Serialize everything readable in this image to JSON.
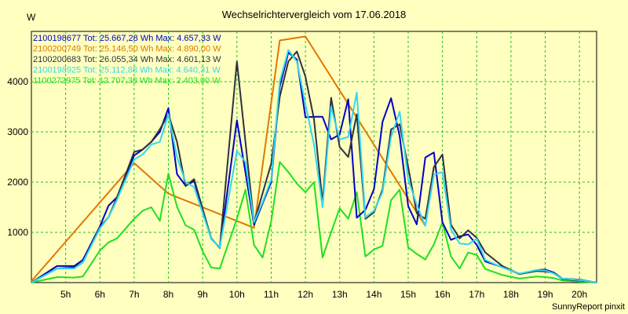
{
  "chart_data": {
    "type": "line",
    "title": "Wechselrichtervergleich vom 17.06.2018",
    "ylabel": "W",
    "footer": "SunnyReport pinxit",
    "grid": true,
    "xlim": [
      4.0,
      20.5
    ],
    "ylim": [
      0,
      5000
    ],
    "x_ticks": [
      {
        "v": 5,
        "label": "5h"
      },
      {
        "v": 6,
        "label": "6h"
      },
      {
        "v": 7,
        "label": "7h"
      },
      {
        "v": 8,
        "label": "8h"
      },
      {
        "v": 9,
        "label": "9h"
      },
      {
        "v": 10,
        "label": "10h"
      },
      {
        "v": 11,
        "label": "11h"
      },
      {
        "v": 12,
        "label": "12h"
      },
      {
        "v": 13,
        "label": "13h"
      },
      {
        "v": 14,
        "label": "14h"
      },
      {
        "v": 15,
        "label": "15h"
      },
      {
        "v": 16,
        "label": "16h"
      },
      {
        "v": 17,
        "label": "17h"
      },
      {
        "v": 18,
        "label": "18h"
      },
      {
        "v": 19,
        "label": "19h"
      },
      {
        "v": 20,
        "label": "20h"
      }
    ],
    "y_ticks": [
      {
        "v": 1000,
        "label": "1000"
      },
      {
        "v": 2000,
        "label": "2000"
      },
      {
        "v": 3000,
        "label": "3000"
      },
      {
        "v": 4000,
        "label": "4000"
      }
    ],
    "series": [
      {
        "name": "2100198677 Tot: 25.667,28 Wh Max: 4.657,33 W",
        "color": "#0000c8",
        "points": [
          [
            4,
            0
          ],
          [
            4.75,
            330
          ],
          [
            5.25,
            330
          ],
          [
            5.5,
            450
          ],
          [
            6,
            1120
          ],
          [
            6.25,
            1530
          ],
          [
            6.5,
            1700
          ],
          [
            7,
            2530
          ],
          [
            7.25,
            2650
          ],
          [
            7.5,
            2800
          ],
          [
            7.75,
            3000
          ],
          [
            8,
            3470
          ],
          [
            8.25,
            2160
          ],
          [
            8.5,
            1930
          ],
          [
            8.75,
            2020
          ],
          [
            9.25,
            880
          ],
          [
            9.5,
            690
          ],
          [
            10,
            3230
          ],
          [
            10.5,
            1150
          ],
          [
            11,
            2000
          ],
          [
            11.25,
            3900
          ],
          [
            11.5,
            4580
          ],
          [
            11.75,
            4440
          ],
          [
            12,
            3290
          ],
          [
            12.25,
            3300
          ],
          [
            12.5,
            3300
          ],
          [
            12.75,
            2850
          ],
          [
            13,
            2950
          ],
          [
            13.25,
            3650
          ],
          [
            13.5,
            1290
          ],
          [
            13.75,
            1450
          ],
          [
            14,
            1860
          ],
          [
            14.25,
            3200
          ],
          [
            14.5,
            3670
          ],
          [
            14.75,
            2920
          ],
          [
            15,
            1520
          ],
          [
            15.25,
            1160
          ],
          [
            15.5,
            2490
          ],
          [
            15.75,
            2590
          ],
          [
            16,
            1200
          ],
          [
            16.25,
            850
          ],
          [
            16.5,
            920
          ],
          [
            16.75,
            960
          ],
          [
            17,
            750
          ],
          [
            17.25,
            420
          ],
          [
            17.75,
            310
          ],
          [
            18.25,
            170
          ],
          [
            18.75,
            250
          ],
          [
            19,
            260
          ],
          [
            19.25,
            200
          ],
          [
            19.5,
            80
          ],
          [
            20,
            60
          ],
          [
            20.5,
            0
          ]
        ]
      },
      {
        "name": "2100200749 Tot: 25.146,50 Wh Max: 4.890,00 W",
        "color": "#e07800",
        "points": [
          [
            4,
            30
          ],
          [
            7,
            2380
          ],
          [
            8,
            1770
          ],
          [
            10.5,
            1090
          ],
          [
            11.25,
            4820
          ],
          [
            12,
            4900
          ],
          [
            15.5,
            1130
          ]
        ]
      },
      {
        "name": "2100200683 Tot: 26.055,34 Wh Max: 4.601,13 W",
        "color": "#303040",
        "points": [
          [
            4,
            0
          ],
          [
            4.75,
            280
          ],
          [
            5.25,
            300
          ],
          [
            5.5,
            400
          ],
          [
            6,
            1110
          ],
          [
            6.25,
            1300
          ],
          [
            6.5,
            1700
          ],
          [
            7,
            2600
          ],
          [
            7.25,
            2650
          ],
          [
            7.5,
            2800
          ],
          [
            7.75,
            3050
          ],
          [
            8,
            3350
          ],
          [
            8.25,
            2800
          ],
          [
            8.5,
            1920
          ],
          [
            8.75,
            2060
          ],
          [
            9.25,
            870
          ],
          [
            9.5,
            700
          ],
          [
            10,
            4400
          ],
          [
            10.5,
            1190
          ],
          [
            11,
            2370
          ],
          [
            11.25,
            3700
          ],
          [
            11.5,
            4400
          ],
          [
            11.75,
            4600
          ],
          [
            12,
            4100
          ],
          [
            12.25,
            3250
          ],
          [
            12.5,
            1600
          ],
          [
            12.75,
            3680
          ],
          [
            13,
            2700
          ],
          [
            13.25,
            2500
          ],
          [
            13.5,
            3350
          ],
          [
            13.75,
            1270
          ],
          [
            14,
            1400
          ],
          [
            14.25,
            1850
          ],
          [
            14.5,
            3050
          ],
          [
            14.75,
            3150
          ],
          [
            15,
            2300
          ],
          [
            15.25,
            1380
          ],
          [
            15.5,
            1270
          ],
          [
            15.75,
            2300
          ],
          [
            16,
            2550
          ],
          [
            16.25,
            1150
          ],
          [
            16.5,
            880
          ],
          [
            16.75,
            1040
          ],
          [
            17,
            890
          ],
          [
            17.25,
            600
          ],
          [
            17.75,
            330
          ],
          [
            18.25,
            170
          ],
          [
            18.75,
            230
          ],
          [
            19,
            220
          ],
          [
            19.25,
            190
          ],
          [
            19.5,
            70
          ],
          [
            20,
            40
          ],
          [
            20.5,
            0
          ]
        ]
      },
      {
        "name": "2100198925 Tot: 25.112,88 Wh Max: 4.640,31 W",
        "color": "#30d8f0",
        "points": [
          [
            4,
            0
          ],
          [
            4.75,
            280
          ],
          [
            5.25,
            280
          ],
          [
            5.5,
            400
          ],
          [
            6,
            1080
          ],
          [
            6.25,
            1300
          ],
          [
            6.5,
            1650
          ],
          [
            7,
            2450
          ],
          [
            7.25,
            2550
          ],
          [
            7.5,
            2750
          ],
          [
            7.75,
            2800
          ],
          [
            8,
            3350
          ],
          [
            8.25,
            2500
          ],
          [
            8.5,
            2000
          ],
          [
            8.75,
            1900
          ],
          [
            9.25,
            870
          ],
          [
            9.5,
            700
          ],
          [
            10,
            2620
          ],
          [
            10.25,
            2400
          ],
          [
            10.5,
            1200
          ],
          [
            10.75,
            1600
          ],
          [
            11,
            2050
          ],
          [
            11.25,
            4000
          ],
          [
            11.5,
            4630
          ],
          [
            11.75,
            4400
          ],
          [
            12,
            3550
          ],
          [
            12.25,
            2750
          ],
          [
            12.5,
            1500
          ],
          [
            12.75,
            3500
          ],
          [
            13,
            2850
          ],
          [
            13.25,
            2900
          ],
          [
            13.5,
            3780
          ],
          [
            13.75,
            1300
          ],
          [
            14,
            1430
          ],
          [
            14.25,
            1800
          ],
          [
            14.5,
            2900
          ],
          [
            14.75,
            3400
          ],
          [
            15,
            2050
          ],
          [
            15.25,
            1550
          ],
          [
            15.5,
            1130
          ],
          [
            15.75,
            2150
          ],
          [
            16,
            2200
          ],
          [
            16.25,
            1060
          ],
          [
            16.5,
            780
          ],
          [
            16.75,
            760
          ],
          [
            17,
            870
          ],
          [
            17.25,
            450
          ],
          [
            17.75,
            300
          ],
          [
            18.25,
            180
          ],
          [
            18.75,
            250
          ],
          [
            19,
            240
          ],
          [
            19.25,
            180
          ],
          [
            19.5,
            80
          ],
          [
            20,
            50
          ],
          [
            20.5,
            0
          ]
        ]
      },
      {
        "name": "1100272975 Tot: 12.707,38 Wh Max: 2.403,00 W",
        "color": "#20e020",
        "points": [
          [
            4,
            0
          ],
          [
            4.75,
            110
          ],
          [
            5.25,
            100
          ],
          [
            5.5,
            120
          ],
          [
            6,
            640
          ],
          [
            6.25,
            800
          ],
          [
            6.5,
            880
          ],
          [
            7,
            1270
          ],
          [
            7.25,
            1430
          ],
          [
            7.5,
            1500
          ],
          [
            7.75,
            1230
          ],
          [
            8,
            2170
          ],
          [
            8.25,
            1510
          ],
          [
            8.5,
            1140
          ],
          [
            8.75,
            1050
          ],
          [
            9,
            620
          ],
          [
            9.25,
            300
          ],
          [
            9.5,
            280
          ],
          [
            10,
            1270
          ],
          [
            10.25,
            1850
          ],
          [
            10.5,
            750
          ],
          [
            10.75,
            500
          ],
          [
            11,
            1220
          ],
          [
            11.25,
            2400
          ],
          [
            11.5,
            2200
          ],
          [
            11.75,
            1970
          ],
          [
            12,
            1800
          ],
          [
            12.25,
            2000
          ],
          [
            12.5,
            500
          ],
          [
            12.75,
            1000
          ],
          [
            13,
            1480
          ],
          [
            13.25,
            1270
          ],
          [
            13.5,
            1800
          ],
          [
            13.75,
            520
          ],
          [
            14,
            660
          ],
          [
            14.25,
            730
          ],
          [
            14.5,
            1640
          ],
          [
            14.75,
            1850
          ],
          [
            15,
            700
          ],
          [
            15.25,
            570
          ],
          [
            15.5,
            460
          ],
          [
            15.75,
            760
          ],
          [
            16,
            1200
          ],
          [
            16.25,
            520
          ],
          [
            16.5,
            280
          ],
          [
            16.75,
            600
          ],
          [
            17,
            550
          ],
          [
            17.25,
            270
          ],
          [
            17.75,
            150
          ],
          [
            18.25,
            80
          ],
          [
            18.75,
            120
          ],
          [
            19,
            110
          ],
          [
            19.25,
            90
          ],
          [
            19.5,
            40
          ],
          [
            20,
            20
          ],
          [
            20.5,
            0
          ]
        ]
      }
    ]
  }
}
